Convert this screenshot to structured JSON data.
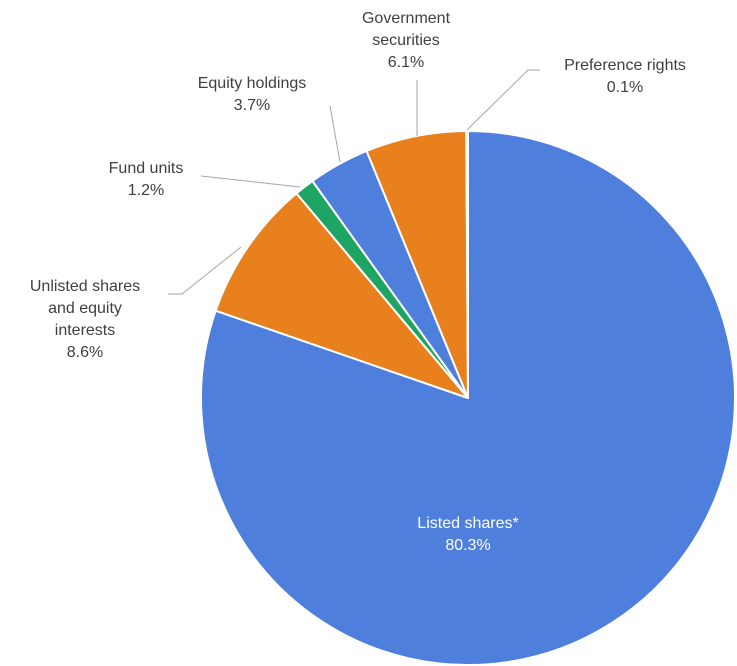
{
  "chart_data": {
    "type": "pie",
    "title": "",
    "slices": [
      {
        "label": "Listed shares*",
        "label_lines": [
          "Listed shares*"
        ],
        "value": 80.3,
        "value_text": "80.3%",
        "color": "#4E7FDD"
      },
      {
        "label": "Unlisted shares and equity interests",
        "label_lines": [
          "Unlisted shares",
          "and equity",
          "interests"
        ],
        "value": 8.6,
        "value_text": "8.6%",
        "color": "#E8811D"
      },
      {
        "label": "Fund units",
        "label_lines": [
          "Fund units"
        ],
        "value": 1.2,
        "value_text": "1.2%",
        "color": "#1EA463"
      },
      {
        "label": "Equity holdings",
        "label_lines": [
          "Equity holdings"
        ],
        "value": 3.7,
        "value_text": "3.7%",
        "color": "#4E7FDD"
      },
      {
        "label": "Government securities",
        "label_lines": [
          "Government",
          "securities"
        ],
        "value": 6.1,
        "value_text": "6.1%",
        "color": "#E8811D"
      },
      {
        "label": "Preference rights",
        "label_lines": [
          "Preference rights"
        ],
        "value": 0.1,
        "value_text": "0.1%",
        "color": "#4E7FDD"
      }
    ],
    "start_angle_deg": 0,
    "direction": "clockwise",
    "legend": "none",
    "label_color": "#404040",
    "inside_label_color": "#ffffff",
    "leader_line_color": "#a6a6a6"
  }
}
